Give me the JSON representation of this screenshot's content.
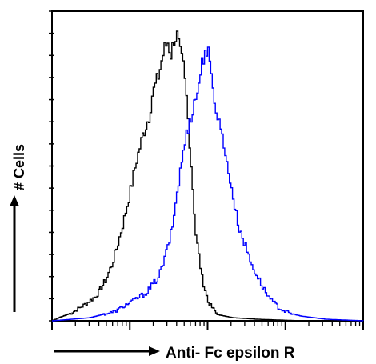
{
  "chart_data": {
    "type": "line",
    "title": "",
    "xlabel": "Anti- Fc epsilon R",
    "ylabel": "# Cells",
    "x_scale": "log",
    "grid": false,
    "legend": "none",
    "series": [
      {
        "color": "#000000",
        "points": [
          [
            0.0,
            0.0
          ],
          [
            0.02,
            0.01
          ],
          [
            0.06,
            0.025
          ],
          [
            0.1,
            0.05
          ],
          [
            0.14,
            0.08
          ],
          [
            0.17,
            0.13
          ],
          [
            0.19,
            0.18
          ],
          [
            0.21,
            0.25
          ],
          [
            0.23,
            0.33
          ],
          [
            0.25,
            0.42
          ],
          [
            0.27,
            0.52
          ],
          [
            0.29,
            0.6
          ],
          [
            0.31,
            0.66
          ],
          [
            0.32,
            0.73
          ],
          [
            0.34,
            0.79
          ],
          [
            0.35,
            0.84
          ],
          [
            0.36,
            0.88
          ],
          [
            0.37,
            0.9
          ],
          [
            0.38,
            0.86
          ],
          [
            0.39,
            0.91
          ],
          [
            0.4,
            0.92
          ],
          [
            0.41,
            0.86
          ],
          [
            0.42,
            0.82
          ],
          [
            0.43,
            0.72
          ],
          [
            0.44,
            0.58
          ],
          [
            0.45,
            0.43
          ],
          [
            0.46,
            0.28
          ],
          [
            0.48,
            0.14
          ],
          [
            0.5,
            0.06
          ],
          [
            0.53,
            0.02
          ],
          [
            0.58,
            0.01
          ],
          [
            0.66,
            0.005
          ],
          [
            0.8,
            0.0
          ],
          [
            1.0,
            0.0
          ]
        ]
      },
      {
        "color": "#0000ff",
        "points": [
          [
            0.0,
            0.0
          ],
          [
            0.12,
            0.01
          ],
          [
            0.2,
            0.03
          ],
          [
            0.25,
            0.06
          ],
          [
            0.3,
            0.09
          ],
          [
            0.34,
            0.14
          ],
          [
            0.36,
            0.2
          ],
          [
            0.38,
            0.28
          ],
          [
            0.39,
            0.34
          ],
          [
            0.4,
            0.42
          ],
          [
            0.41,
            0.48
          ],
          [
            0.42,
            0.55
          ],
          [
            0.43,
            0.6
          ],
          [
            0.44,
            0.65
          ],
          [
            0.45,
            0.68
          ],
          [
            0.46,
            0.72
          ],
          [
            0.47,
            0.77
          ],
          [
            0.48,
            0.83
          ],
          [
            0.49,
            0.88
          ],
          [
            0.5,
            0.86
          ],
          [
            0.51,
            0.78
          ],
          [
            0.52,
            0.72
          ],
          [
            0.53,
            0.66
          ],
          [
            0.54,
            0.62
          ],
          [
            0.55,
            0.58
          ],
          [
            0.56,
            0.5
          ],
          [
            0.57,
            0.46
          ],
          [
            0.58,
            0.4
          ],
          [
            0.59,
            0.34
          ],
          [
            0.6,
            0.3
          ],
          [
            0.62,
            0.24
          ],
          [
            0.64,
            0.18
          ],
          [
            0.66,
            0.14
          ],
          [
            0.68,
            0.1
          ],
          [
            0.7,
            0.07
          ],
          [
            0.73,
            0.04
          ],
          [
            0.76,
            0.025
          ],
          [
            0.8,
            0.015
          ],
          [
            0.84,
            0.01
          ],
          [
            0.88,
            0.005
          ],
          [
            1.0,
            0.0
          ]
        ]
      }
    ]
  }
}
